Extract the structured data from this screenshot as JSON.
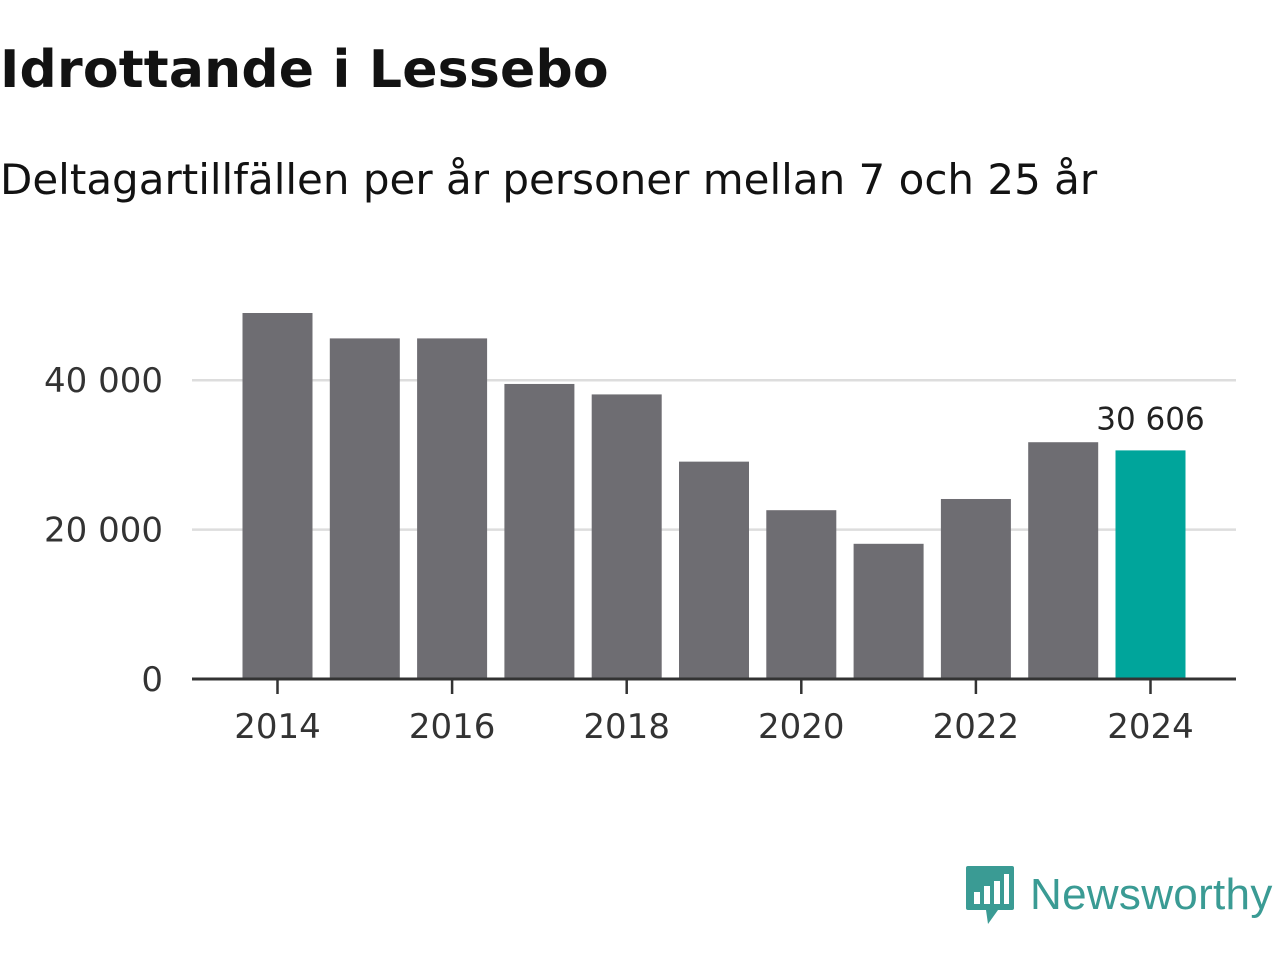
{
  "title": "Idrottande i Lessebo",
  "subtitle": "Deltagartillfällen per år personer mellan 7 och 25 år",
  "brand": {
    "name": "Newsworthy",
    "icon": "newsworthy-logo-icon",
    "color": "#3a9b94"
  },
  "colors": {
    "bar": "#6e6d72",
    "highlight": "#00a59b",
    "grid": "#dddddd",
    "axis": "#333333"
  },
  "chart_data": {
    "type": "bar",
    "title": "Idrottande i Lessebo",
    "subtitle": "Deltagartillfällen per år personer mellan 7 och 25 år",
    "xlabel": "",
    "ylabel": "",
    "categories": [
      2014,
      2015,
      2016,
      2017,
      2018,
      2019,
      2020,
      2021,
      2022,
      2023,
      2024
    ],
    "values": [
      49000,
      45600,
      45600,
      39500,
      38100,
      29100,
      22600,
      18100,
      24100,
      31700,
      30606
    ],
    "highlight_index": 10,
    "highlight_label": "30 606",
    "ylim": [
      0,
      50000
    ],
    "yticks": [
      {
        "value": 0,
        "label": "0"
      },
      {
        "value": 20000,
        "label": "20 000"
      },
      {
        "value": 40000,
        "label": "40 000"
      }
    ],
    "xticks": [
      {
        "value": 2014,
        "label": "2014"
      },
      {
        "value": 2016,
        "label": "2016"
      },
      {
        "value": 2018,
        "label": "2018"
      },
      {
        "value": 2020,
        "label": "2020"
      },
      {
        "value": 2022,
        "label": "2022"
      },
      {
        "value": 2024,
        "label": "2024"
      }
    ],
    "grid": true,
    "legend": "none"
  }
}
